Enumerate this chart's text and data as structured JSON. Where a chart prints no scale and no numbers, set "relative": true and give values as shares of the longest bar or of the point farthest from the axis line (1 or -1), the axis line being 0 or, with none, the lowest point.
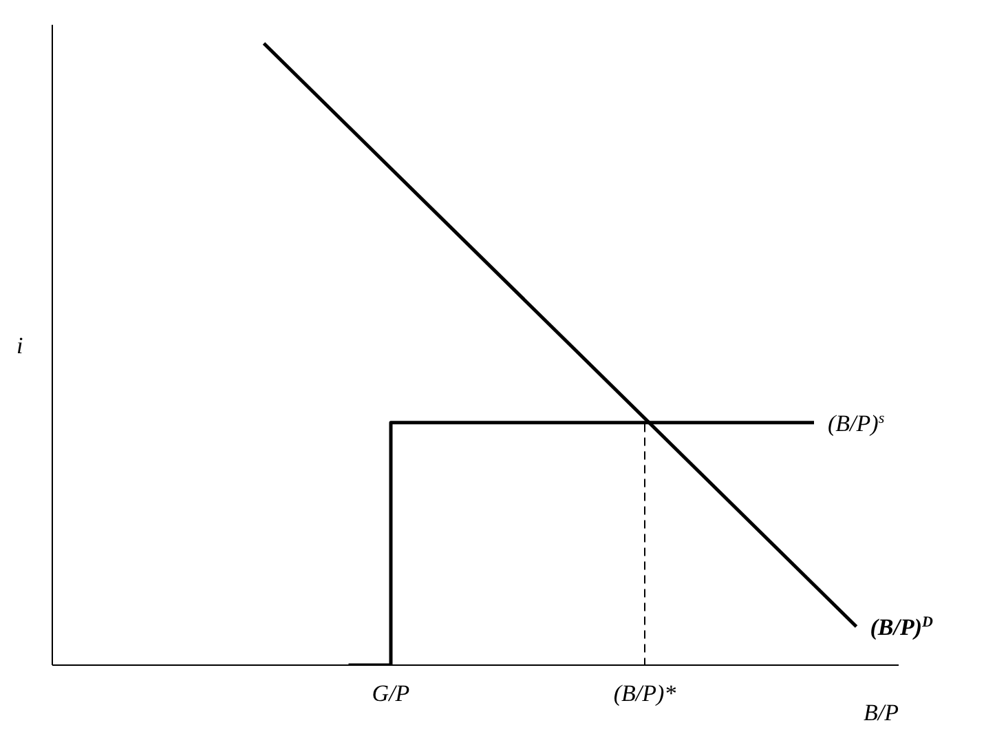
{
  "chart_data": {
    "type": "line",
    "relative": true,
    "ylabel": "i",
    "xlabel": "B/P",
    "categories": [
      null,
      null,
      null,
      null,
      null,
      null,
      null,
      null,
      "G/P",
      null,
      null,
      null,
      null,
      null,
      "(B/P)*",
      null,
      null,
      null,
      null,
      null,
      null
    ],
    "legend": false,
    "marker": "none",
    "grid": false,
    "series": [
      {
        "name": "(B/P)$^{D}$",
        "color": "#000000",
        "values": [
          null,
          null,
          null,
          null,
          null,
          1,
          null,
          null,
          null,
          null,
          null,
          null,
          null,
          null,
          null,
          null,
          null,
          null,
          null,
          0.062,
          null
        ]
      },
      {
        "name": "(B/P)$^{s}$",
        "type": "step",
        "color": "#000000",
        "values": [
          null,
          null,
          null,
          null,
          null,
          null,
          null,
          0,
          0.39,
          null,
          null,
          null,
          null,
          null,
          null,
          null,
          null,
          null,
          0.39,
          null,
          null
        ]
      },
      {
        "type": "step",
        "color": "#000000",
        "line_style": "dashed",
        "values": [
          null,
          null,
          null,
          null,
          null,
          null,
          null,
          null,
          null,
          null,
          null,
          null,
          null,
          0,
          0.39,
          null,
          null,
          null,
          null,
          null,
          null
        ]
      }
    ]
  }
}
